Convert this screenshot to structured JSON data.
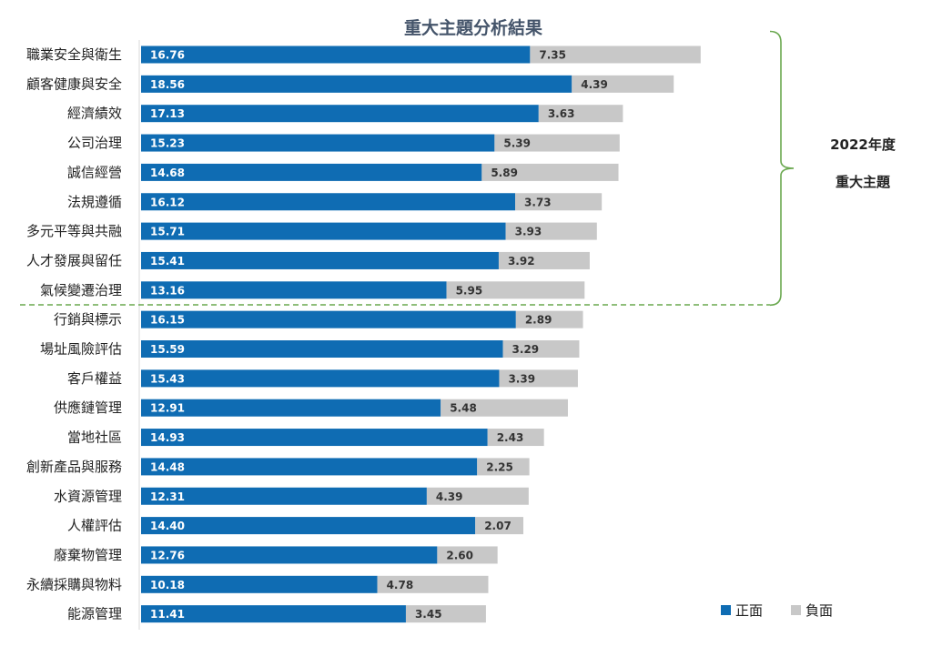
{
  "chart_data": {
    "type": "bar",
    "orientation": "horizontal",
    "stacked": true,
    "title": "重大主題分析結果",
    "categories": [
      "職業安全與衛生",
      "顧客健康與安全",
      "經濟績效",
      "公司治理",
      "誠信經營",
      "法規遵循",
      "多元平等與共融",
      "人才發展與留任",
      "氣候變遷治理",
      "行銷與標示",
      "場址風險評估",
      "客戶權益",
      "供應鏈管理",
      "當地社區",
      "創新產品與服務",
      "水資源管理",
      "人權評估",
      "廢棄物管理",
      "永續採購與物料",
      "能源管理"
    ],
    "series": [
      {
        "name": "正面",
        "color": "#0f6cb3",
        "label_color": "#ffffff",
        "values": [
          16.76,
          18.56,
          17.13,
          15.23,
          14.68,
          16.12,
          15.71,
          15.41,
          13.16,
          16.15,
          15.59,
          15.43,
          12.91,
          14.93,
          14.48,
          12.31,
          14.4,
          12.76,
          10.18,
          11.41
        ],
        "labels": [
          "16.76",
          "18.56",
          "17.13",
          "15.23",
          "14.68",
          "16.12",
          "15.71",
          "15.41",
          "13.16",
          "16.15",
          "15.59",
          "15.43",
          "12.91",
          "14.93",
          "14.48",
          "12.31",
          "14.40",
          "12.76",
          "10.18",
          "11.41"
        ]
      },
      {
        "name": "負面",
        "color": "#c8c8c8",
        "label_color": "#333333",
        "values": [
          7.35,
          4.39,
          3.63,
          5.39,
          5.89,
          3.73,
          3.93,
          3.92,
          5.95,
          2.89,
          3.29,
          3.39,
          5.48,
          2.43,
          2.25,
          4.39,
          2.07,
          2.6,
          4.78,
          3.45
        ],
        "labels": [
          "7.35",
          "4.39",
          "3.63",
          "5.39",
          "5.89",
          "3.73",
          "3.93",
          "3.92",
          "5.95",
          "2.89",
          "3.29",
          "3.39",
          "5.48",
          "2.43",
          "2.25",
          "4.39",
          "2.07",
          "2.60",
          "4.78",
          "3.45"
        ]
      }
    ],
    "xlim": [
      0,
      24
    ],
    "grid": false,
    "legend_position": "bottom-right",
    "material_group": {
      "label_line1": "2022年度",
      "label_line2": "重大主題",
      "count": 9,
      "bracket_color": "#6aa84f",
      "divider_color": "#6aa84f"
    }
  }
}
